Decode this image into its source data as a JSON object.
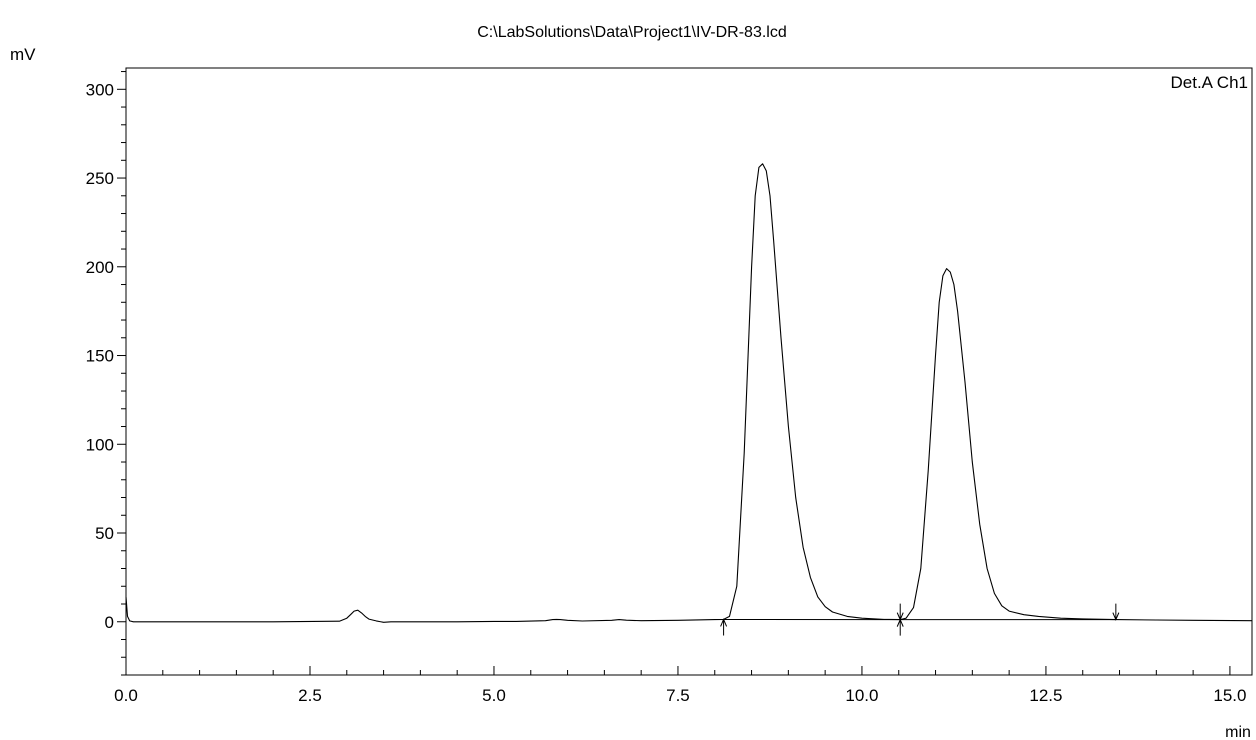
{
  "chart_data": {
    "type": "line",
    "title": "C:\\LabSolutions\\Data\\Project1\\IV-DR-83.lcd",
    "xlabel": "min",
    "ylabel": "mV",
    "series_label": "Det.A Ch1",
    "xlim": [
      0.0,
      15.3
    ],
    "ylim": [
      -30,
      312
    ],
    "x_ticks": [
      0.0,
      2.5,
      5.0,
      7.5,
      10.0,
      12.5,
      15.0
    ],
    "x_tick_labels": [
      "0.0",
      "2.5",
      "5.0",
      "7.5",
      "10.0",
      "12.5",
      "15.0"
    ],
    "y_ticks": [
      0,
      50,
      100,
      150,
      200,
      250,
      300
    ],
    "y_tick_labels": [
      "0",
      "50",
      "100",
      "150",
      "200",
      "250",
      "300"
    ],
    "grid": false,
    "line_color": "#000000",
    "baseline_marks": [
      {
        "x": 8.12,
        "direction": "up"
      },
      {
        "x": 10.52,
        "direction": "down"
      },
      {
        "x": 10.52,
        "direction": "up"
      },
      {
        "x": 13.45,
        "direction": "down"
      }
    ],
    "series": [
      {
        "x": [
          0.0,
          0.02,
          0.05,
          0.1,
          2.0,
          2.9,
          3.0,
          3.05,
          3.1,
          3.15,
          3.2,
          3.25,
          3.3,
          3.4,
          3.5,
          3.6,
          4.0,
          4.5,
          5.0,
          5.3,
          5.7,
          5.8,
          5.85,
          5.9,
          6.0,
          6.2,
          6.6,
          6.7,
          6.8,
          7.0,
          7.5,
          8.0,
          8.12,
          8.2,
          8.3,
          8.4,
          8.5,
          8.55,
          8.6,
          8.65,
          8.7,
          8.75,
          8.8,
          8.9,
          9.0,
          9.1,
          9.2,
          9.3,
          9.4,
          9.5,
          9.6,
          9.8,
          10.0,
          10.3,
          10.52,
          10.6,
          10.7,
          10.8,
          10.9,
          11.0,
          11.05,
          11.1,
          11.15,
          11.2,
          11.25,
          11.3,
          11.4,
          11.5,
          11.6,
          11.7,
          11.8,
          11.9,
          12.0,
          12.2,
          12.4,
          12.7,
          13.0,
          13.45,
          14.0,
          14.5,
          15.3
        ],
        "y": [
          14,
          3,
          0.5,
          0,
          0,
          0.3,
          2,
          4,
          6,
          6.5,
          5,
          3,
          1.5,
          0.5,
          -0.3,
          0,
          0,
          0,
          0.2,
          0.2,
          0.6,
          1.2,
          1.3,
          1.2,
          0.8,
          0.4,
          0.8,
          1.2,
          0.9,
          0.6,
          0.8,
          1.2,
          1.3,
          3,
          20,
          95,
          200,
          240,
          256,
          258,
          254,
          240,
          215,
          160,
          110,
          70,
          42,
          25,
          14,
          8.5,
          5.5,
          3,
          2,
          1.3,
          1.2,
          2,
          8,
          30,
          85,
          150,
          180,
          195,
          199,
          197,
          190,
          175,
          135,
          90,
          55,
          30,
          16,
          9,
          6,
          4,
          3,
          2,
          1.6,
          1.2,
          1.0,
          0.8,
          0.6
        ]
      }
    ]
  }
}
